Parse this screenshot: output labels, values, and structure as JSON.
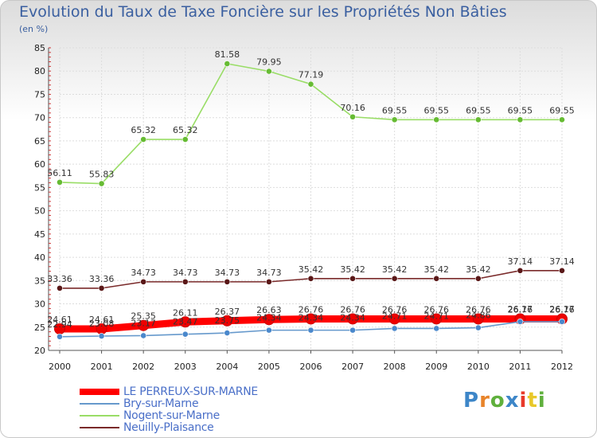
{
  "title": "Evolution du Taux de Taxe Foncière sur les Propriétés Non Bâties",
  "unit_label": "(en %)",
  "logo_text": "Proxiti",
  "logo_colors": [
    "#3d86c8",
    "#e8842a",
    "#5fb03c",
    "#3d86c8",
    "#e83a2a",
    "#e8c82a",
    "#5fb03c"
  ],
  "chart_data": {
    "type": "line",
    "title": "Evolution du Taux de Taxe Foncière sur les Propriétés Non Bâties",
    "ylabel": "(en %)",
    "xlabel": "",
    "ylim": [
      20,
      85
    ],
    "yticks": [
      20,
      25,
      30,
      35,
      40,
      45,
      50,
      55,
      60,
      65,
      70,
      75,
      80,
      85
    ],
    "grid": true,
    "legend_position": "bottom-left",
    "x": [
      "2000",
      "2001",
      "2002",
      "2003",
      "2004",
      "2005",
      "2006",
      "2007",
      "2008",
      "2009",
      "2010",
      "2011",
      "2012"
    ],
    "series": [
      {
        "name": "Nogent-sur-Marne",
        "color": "#99dd66",
        "marker": "#66bb33",
        "values": [
          56.11,
          55.83,
          65.32,
          65.32,
          81.58,
          79.95,
          77.19,
          70.16,
          69.55,
          69.55,
          69.55,
          69.55,
          69.55
        ],
        "labels": [
          "56.11",
          "55.83",
          "65.32",
          "65.32",
          "81.58",
          "79.95",
          "77.19",
          "70.16",
          "69.55",
          "69.55",
          "69.55",
          "69.55",
          "69.55"
        ]
      },
      {
        "name": "Neuilly-Plaisance",
        "color": "#7a2a2a",
        "marker": "#5a1818",
        "values": [
          33.36,
          33.36,
          34.73,
          34.73,
          34.73,
          34.73,
          35.42,
          35.42,
          35.42,
          35.42,
          35.42,
          37.14,
          37.14
        ],
        "labels": [
          "33.36",
          "33.36",
          "34.73",
          "34.73",
          "34.73",
          "34.73",
          "35.42",
          "35.42",
          "35.42",
          "35.42",
          "35.42",
          "37.14",
          "37.14"
        ]
      },
      {
        "name": "LE PERREUX-SUR-MARNE",
        "color": "#ff0000",
        "marker": "#ee0000",
        "values": [
          24.61,
          24.61,
          25.35,
          26.11,
          26.37,
          26.63,
          26.76,
          26.76,
          26.76,
          26.76,
          26.76,
          26.76,
          26.76
        ],
        "labels": [
          "24.61",
          "24.61",
          "25.35",
          "26.11",
          "26.37",
          "26.63",
          "26.76",
          "26.76",
          "26.76",
          "26.76",
          "26.76",
          "26.76",
          "26.76"
        ]
      },
      {
        "name": "Bry-sur-Marne",
        "color": "#6699cc",
        "marker": "#4a88cc",
        "values": [
          22.94,
          23.08,
          23.17,
          23.47,
          23.75,
          24.34,
          24.34,
          24.34,
          24.71,
          24.71,
          24.86,
          26.17,
          26.17
        ],
        "labels": [
          "22.94",
          "23.08",
          "23.17",
          "23.47",
          "23.75",
          "24.34",
          "24.34",
          "24.34",
          "24.71",
          "24.71",
          "24.86",
          "26.17",
          "26.17"
        ]
      }
    ],
    "legend": [
      "LE PERREUX-SUR-MARNE",
      "Bry-sur-Marne",
      "Nogent-sur-Marne",
      "Neuilly-Plaisance"
    ]
  }
}
